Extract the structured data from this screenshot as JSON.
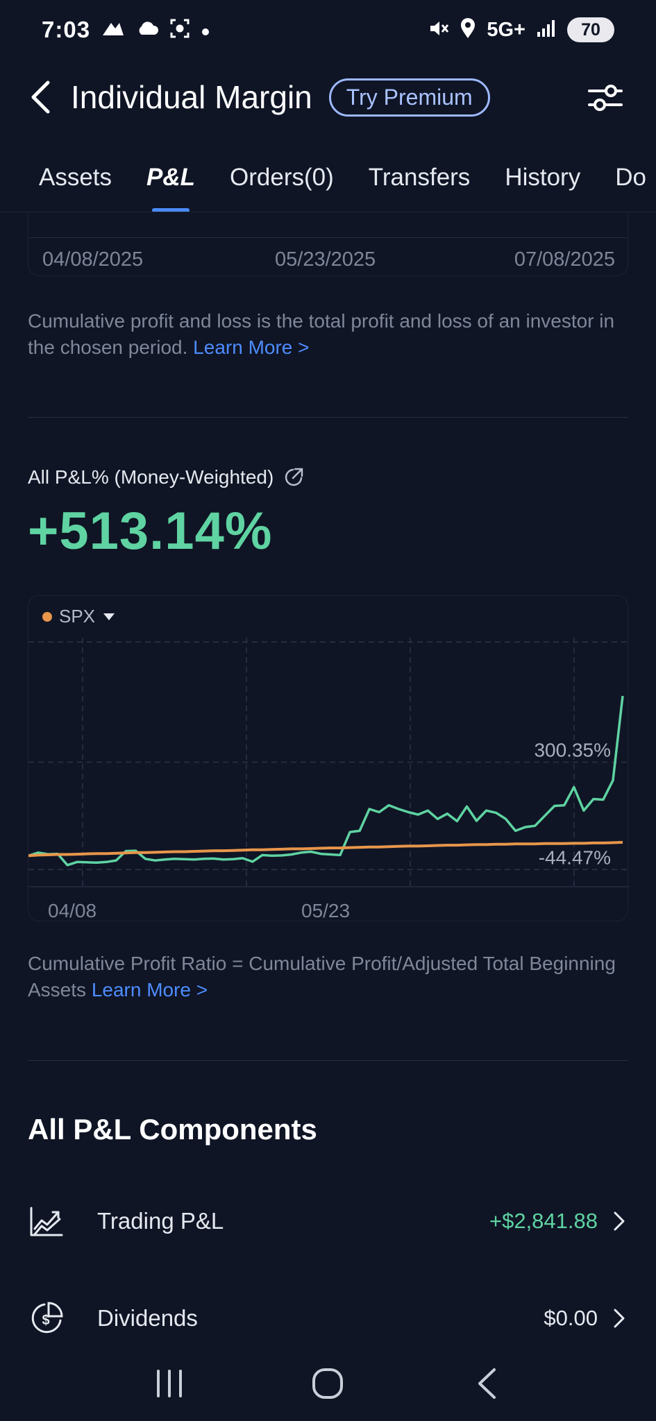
{
  "status_bar": {
    "time": "7:03",
    "network": "5G+",
    "battery": "70"
  },
  "header": {
    "title": "Individual Margin",
    "premium_label": "Try Premium"
  },
  "tabs": [
    {
      "label": "Assets",
      "active": false
    },
    {
      "label": "P&L",
      "active": true
    },
    {
      "label": "Orders(0)",
      "active": false
    },
    {
      "label": "Transfers",
      "active": false
    },
    {
      "label": "History",
      "active": false
    },
    {
      "label": "Do",
      "active": false
    }
  ],
  "prev_chart": {
    "dates": [
      "04/08/2025",
      "05/23/2025",
      "07/08/2025"
    ]
  },
  "cumulative_desc": {
    "text": "Cumulative profit and loss is the total profit and loss of an investor in the chosen period.",
    "link": "Learn More >"
  },
  "pl_summary": {
    "label": "All P&L% (Money-Weighted)",
    "value": "+513.14%"
  },
  "chart_data": {
    "type": "line",
    "legend_selector": "SPX",
    "x_ticks": [
      "04/08",
      "05/23"
    ],
    "y_tick_labels": [
      "300.35%",
      "-44.47%"
    ],
    "y_ticks": [
      300.35,
      -44.47
    ],
    "ylim": [
      -124,
      700
    ],
    "series": [
      {
        "color": "#5fd3a2",
        "values": [
          0,
          10,
          5,
          6,
          -30,
          -20,
          -21,
          -22,
          -20,
          -15,
          15,
          16,
          -10,
          -15,
          -12,
          -10,
          -11,
          -12,
          -10,
          -9,
          -12,
          -11,
          -8,
          -19,
          2,
          0,
          1,
          4,
          10,
          13,
          6,
          4,
          2,
          76,
          80,
          150,
          140,
          162,
          150,
          140,
          132,
          145,
          118,
          135,
          111,
          158,
          112,
          145,
          138,
          118,
          80,
          92,
          96,
          128,
          160,
          162,
          220,
          145,
          182,
          180,
          242,
          513
        ]
      },
      {
        "color": "#e8964b",
        "values": [
          0,
          2,
          3,
          4,
          4,
          5,
          6,
          7,
          7,
          8,
          9,
          10,
          10,
          11,
          12,
          13,
          13,
          14,
          15,
          16,
          16,
          17,
          18,
          19,
          19,
          20,
          21,
          22,
          22,
          23,
          24,
          25,
          25,
          26,
          27,
          28,
          28,
          29,
          30,
          31,
          31,
          32,
          33,
          34,
          34,
          35,
          36,
          36,
          37,
          37,
          38,
          38,
          38,
          39,
          39,
          39,
          40,
          40,
          41,
          41,
          42,
          43
        ]
      }
    ]
  },
  "ratio_desc": {
    "text": "Cumulative Profit Ratio = Cumulative Profit/Adjusted Total Beginning Assets",
    "link": "Learn More >"
  },
  "components": {
    "title": "All P&L Components",
    "items": [
      {
        "label": "Trading P&L",
        "value": "+$2,841.88",
        "icon": "trading-chart-icon"
      },
      {
        "label": "Dividends",
        "value": "$0.00",
        "icon": "dividend-dollar-icon"
      }
    ]
  },
  "colors": {
    "background": "#0f1525",
    "positive": "#5fd3a2",
    "benchmark": "#e8964b",
    "link": "#4e8cff"
  }
}
